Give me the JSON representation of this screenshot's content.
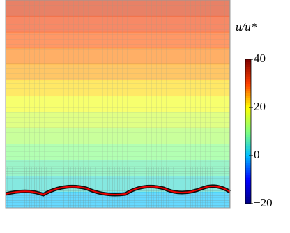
{
  "chart_data": {
    "type": "heatmap",
    "colorbar_label": "u/u*",
    "values": [
      33,
      31,
      29,
      27,
      25,
      22,
      19,
      16,
      13,
      10,
      7,
      4,
      0
    ],
    "colormap": [
      "#00007f",
      "#0000ff",
      "#00bfff",
      "#7fff7f",
      "#ffff00",
      "#ff4000",
      "#7f0000"
    ],
    "clim": [
      -20,
      40
    ],
    "cticks": [
      40,
      20,
      0,
      {
        "value": -20,
        "label": "−20"
      }
    ]
  }
}
